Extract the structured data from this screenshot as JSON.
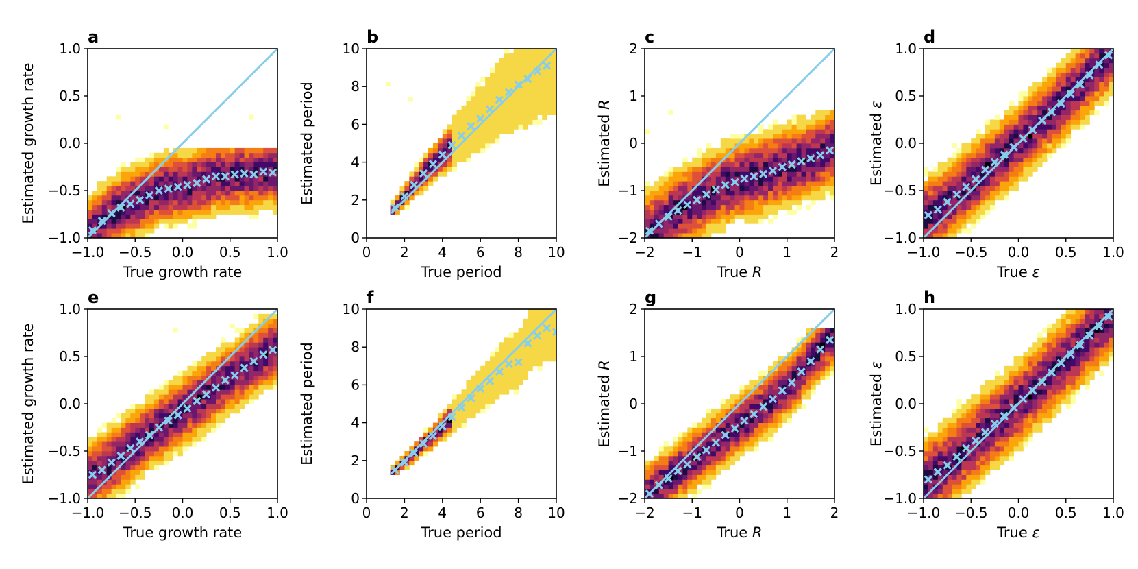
{
  "figure": {
    "description_colormap": "inferno_r",
    "colors": {
      "reference_line": "#87ceeb",
      "markers": "#87ceeb",
      "axes": "#000000"
    }
  },
  "chart_data": [
    {
      "type": "heatmap",
      "panel": "a",
      "xlabel": "True growth rate",
      "ylabel": "Estimated growth rate",
      "xlim": [
        -1,
        1
      ],
      "ylim": [
        -1,
        1
      ],
      "xticks": [
        -1.0,
        -0.5,
        0.0,
        0.5,
        1.0
      ],
      "xtick_labels": [
        "−1.0",
        "−0.5",
        "0.0",
        "0.5",
        "1.0"
      ],
      "yticks": [
        -1.0,
        -0.5,
        0.0,
        0.5,
        1.0
      ],
      "ytick_labels": [
        "−1.0",
        "−0.5",
        "0.0",
        "0.5",
        "1.0"
      ],
      "reference_line": [
        [
          -1,
          -1
        ],
        [
          1,
          1
        ]
      ],
      "binned_mean": {
        "x": [
          -0.95,
          -0.85,
          -0.75,
          -0.65,
          -0.55,
          -0.45,
          -0.35,
          -0.25,
          -0.15,
          -0.05,
          0.05,
          0.15,
          0.25,
          0.35,
          0.45,
          0.55,
          0.65,
          0.75,
          0.85,
          0.95
        ],
        "y": [
          -0.92,
          -0.82,
          -0.74,
          -0.68,
          -0.64,
          -0.6,
          -0.55,
          -0.5,
          -0.48,
          -0.46,
          -0.44,
          -0.42,
          -0.38,
          -0.35,
          -0.35,
          -0.33,
          -0.32,
          -0.33,
          -0.3,
          -0.31
        ]
      },
      "density": {
        "spread": 0.2,
        "ymin": -1.0,
        "ymax": -0.05,
        "outliers": [
          [
            -0.7,
            0.25
          ],
          [
            0.7,
            0.25
          ],
          [
            -0.2,
            0.15
          ]
        ]
      }
    },
    {
      "type": "heatmap",
      "panel": "b",
      "xlabel": "True period",
      "ylabel": "Estimated period",
      "xlim": [
        0,
        10
      ],
      "ylim": [
        0,
        10
      ],
      "xticks": [
        0,
        2,
        4,
        6,
        8,
        10
      ],
      "xtick_labels": [
        "0",
        "2",
        "4",
        "6",
        "8",
        "10"
      ],
      "yticks": [
        0,
        2,
        4,
        6,
        8,
        10
      ],
      "ytick_labels": [
        "0",
        "2",
        "4",
        "6",
        "8",
        "10"
      ],
      "reference_line": [
        [
          1.3,
          1.3
        ],
        [
          10,
          10
        ]
      ],
      "binned_mean": {
        "x": [
          1.5,
          2.0,
          2.5,
          3.0,
          3.5,
          4.0,
          4.5,
          5.0,
          5.5,
          6.0,
          6.5,
          7.0,
          7.5,
          8.0,
          8.5,
          9.0,
          9.5
        ],
        "y": [
          1.6,
          2.2,
          2.8,
          3.4,
          3.9,
          4.4,
          4.9,
          5.4,
          5.9,
          6.3,
          6.8,
          7.3,
          7.7,
          8.1,
          8.4,
          8.8,
          9.1
        ]
      },
      "density": {
        "spread": 1.4,
        "ymin": 1.2,
        "ymax": 10,
        "xmin": 1.2,
        "outliers": [
          [
            2.2,
            7.2
          ],
          [
            1.0,
            8.0
          ]
        ]
      }
    },
    {
      "type": "heatmap",
      "panel": "c",
      "xlabel": "True R",
      "xlabel_main": "True",
      "xlabel_var": "R",
      "ylabel": "Estimated R",
      "ylabel_main": "Estimated",
      "ylabel_var": "R",
      "xlim": [
        -2,
        2
      ],
      "ylim": [
        -2,
        2
      ],
      "xticks": [
        -2,
        -1,
        0,
        1,
        2
      ],
      "xtick_labels": [
        "−2",
        "−1",
        "0",
        "1",
        "2"
      ],
      "yticks": [
        -2,
        -1,
        0,
        1,
        2
      ],
      "ytick_labels": [
        "−2",
        "−1",
        "0",
        "1",
        "2"
      ],
      "reference_line": [
        [
          -2,
          -2
        ],
        [
          2,
          2
        ]
      ],
      "binned_mean": {
        "x": [
          -1.9,
          -1.7,
          -1.5,
          -1.3,
          -1.1,
          -0.9,
          -0.7,
          -0.5,
          -0.3,
          -0.1,
          0.1,
          0.3,
          0.5,
          0.7,
          0.9,
          1.1,
          1.3,
          1.5,
          1.7,
          1.9
        ],
        "y": [
          -1.85,
          -1.7,
          -1.55,
          -1.42,
          -1.3,
          -1.2,
          -1.08,
          -0.98,
          -0.88,
          -0.82,
          -0.75,
          -0.7,
          -0.65,
          -0.58,
          -0.5,
          -0.45,
          -0.38,
          -0.32,
          -0.25,
          -0.15
        ]
      },
      "density": {
        "spread": 0.45,
        "ymin": -2.0,
        "ymax": 0.7,
        "outliers": [
          [
            -1.5,
            0.6
          ],
          [
            -2.0,
            0.2
          ]
        ]
      }
    },
    {
      "type": "heatmap",
      "panel": "d",
      "xlabel": "True ε",
      "xlabel_main": "True",
      "xlabel_var": "ε",
      "ylabel": "Estimated ε",
      "ylabel_main": "Estimated",
      "ylabel_var": "ε",
      "xlim": [
        -1,
        1
      ],
      "ylim": [
        -1,
        1
      ],
      "xticks": [
        -1.0,
        -0.5,
        0.0,
        0.5,
        1.0
      ],
      "xtick_labels": [
        "−1.0",
        "−0.5",
        "0.0",
        "0.5",
        "1.0"
      ],
      "yticks": [
        -1.0,
        -0.5,
        0.0,
        0.5,
        1.0
      ],
      "ytick_labels": [
        "−1.0",
        "−0.5",
        "0.0",
        "0.5",
        "1.0"
      ],
      "reference_line": [
        [
          -1,
          -1
        ],
        [
          1,
          1
        ]
      ],
      "binned_mean": {
        "x": [
          -0.95,
          -0.85,
          -0.75,
          -0.65,
          -0.55,
          -0.45,
          -0.35,
          -0.25,
          -0.15,
          -0.05,
          0.05,
          0.15,
          0.25,
          0.35,
          0.45,
          0.55,
          0.65,
          0.75,
          0.85,
          0.95
        ],
        "y": [
          -0.76,
          -0.7,
          -0.62,
          -0.54,
          -0.46,
          -0.38,
          -0.28,
          -0.2,
          -0.12,
          -0.04,
          0.05,
          0.14,
          0.24,
          0.33,
          0.42,
          0.52,
          0.62,
          0.72,
          0.83,
          0.93
        ]
      },
      "density": {
        "spread": 0.22,
        "ymin": -1.0,
        "ymax": 1.0,
        "outliers": []
      }
    },
    {
      "type": "heatmap",
      "panel": "e",
      "xlabel": "True growth rate",
      "ylabel": "Estimated growth rate",
      "xlim": [
        -1,
        1
      ],
      "ylim": [
        -1,
        1
      ],
      "xticks": [
        -1.0,
        -0.5,
        0.0,
        0.5,
        1.0
      ],
      "xtick_labels": [
        "−1.0",
        "−0.5",
        "0.0",
        "0.5",
        "1.0"
      ],
      "yticks": [
        -1.0,
        -0.5,
        0.0,
        0.5,
        1.0
      ],
      "ytick_labels": [
        "−1.0",
        "−0.5",
        "0.0",
        "0.5",
        "1.0"
      ],
      "reference_line": [
        [
          -1,
          -1
        ],
        [
          1,
          1
        ]
      ],
      "binned_mean": {
        "x": [
          -0.95,
          -0.85,
          -0.75,
          -0.65,
          -0.55,
          -0.45,
          -0.35,
          -0.25,
          -0.15,
          -0.05,
          0.05,
          0.15,
          0.25,
          0.35,
          0.45,
          0.55,
          0.65,
          0.75,
          0.85,
          0.95
        ],
        "y": [
          -0.75,
          -0.7,
          -0.62,
          -0.55,
          -0.47,
          -0.4,
          -0.33,
          -0.25,
          -0.18,
          -0.12,
          -0.05,
          0.03,
          0.1,
          0.17,
          0.25,
          0.3,
          0.38,
          0.45,
          0.52,
          0.57
        ]
      },
      "density": {
        "spread": 0.2,
        "ymin": -1.0,
        "ymax": 1.0,
        "outliers": [
          [
            -0.1,
            0.75
          ],
          [
            0.5,
            0.8
          ]
        ]
      }
    },
    {
      "type": "heatmap",
      "panel": "f",
      "xlabel": "True period",
      "ylabel": "Estimated period",
      "xlim": [
        0,
        10
      ],
      "ylim": [
        0,
        10
      ],
      "xticks": [
        0,
        2,
        4,
        6,
        8,
        10
      ],
      "xtick_labels": [
        "0",
        "2",
        "4",
        "6",
        "8",
        "10"
      ],
      "yticks": [
        0,
        2,
        4,
        6,
        8,
        10
      ],
      "ytick_labels": [
        "0",
        "2",
        "4",
        "6",
        "8",
        "10"
      ],
      "reference_line": [
        [
          1.3,
          1.3
        ],
        [
          10,
          10
        ]
      ],
      "binned_mean": {
        "x": [
          1.5,
          2.0,
          2.5,
          3.0,
          3.5,
          4.0,
          4.5,
          5.0,
          5.5,
          6.0,
          6.5,
          7.0,
          7.5,
          8.0,
          8.5,
          9.0,
          9.5,
          10.0
        ],
        "y": [
          1.5,
          1.9,
          2.4,
          2.9,
          3.3,
          3.8,
          4.3,
          4.8,
          5.3,
          5.8,
          6.2,
          6.7,
          7.1,
          7.2,
          8.2,
          8.6,
          9.0,
          8.8
        ]
      },
      "density": {
        "spread": 0.9,
        "ymin": 1.2,
        "ymax": 10,
        "xmin": 1.2,
        "outliers": []
      }
    },
    {
      "type": "heatmap",
      "panel": "g",
      "xlabel": "True R",
      "xlabel_main": "True",
      "xlabel_var": "R",
      "ylabel": "Estimated R",
      "ylabel_main": "Estimated",
      "ylabel_var": "R",
      "xlim": [
        -2,
        2
      ],
      "ylim": [
        -2,
        2
      ],
      "xticks": [
        -2,
        -1,
        0,
        1,
        2
      ],
      "xtick_labels": [
        "−2",
        "−1",
        "0",
        "1",
        "2"
      ],
      "yticks": [
        -2,
        -1,
        0,
        1,
        2
      ],
      "ytick_labels": [
        "−2",
        "−1",
        "0",
        "1",
        "2"
      ],
      "reference_line": [
        [
          -2,
          -2
        ],
        [
          2,
          2
        ]
      ],
      "binned_mean": {
        "x": [
          -1.9,
          -1.7,
          -1.5,
          -1.3,
          -1.1,
          -0.9,
          -0.7,
          -0.5,
          -0.3,
          -0.1,
          0.1,
          0.3,
          0.5,
          0.7,
          0.9,
          1.1,
          1.3,
          1.5,
          1.7,
          1.9
        ],
        "y": [
          -1.9,
          -1.72,
          -1.58,
          -1.42,
          -1.28,
          -1.12,
          -0.98,
          -0.82,
          -0.66,
          -0.52,
          -0.36,
          -0.22,
          -0.06,
          0.1,
          0.28,
          0.45,
          0.68,
          0.9,
          1.15,
          1.35
        ]
      },
      "density": {
        "spread": 0.35,
        "ymin": -2.0,
        "ymax": 1.6,
        "outliers": []
      }
    },
    {
      "type": "heatmap",
      "panel": "h",
      "xlabel": "True ε",
      "xlabel_main": "True",
      "xlabel_var": "ε",
      "ylabel": "Estimated ε",
      "ylabel_main": "Estimated",
      "ylabel_var": "ε",
      "xlim": [
        -1,
        1
      ],
      "ylim": [
        -1,
        1
      ],
      "xticks": [
        -1.0,
        -0.5,
        0.0,
        0.5,
        1.0
      ],
      "xtick_labels": [
        "−1.0",
        "−0.5",
        "0.0",
        "0.5",
        "1.0"
      ],
      "yticks": [
        -1.0,
        -0.5,
        0.0,
        0.5,
        1.0
      ],
      "ytick_labels": [
        "−1.0",
        "−0.5",
        "0.0",
        "0.5",
        "1.0"
      ],
      "reference_line": [
        [
          -1,
          -1
        ],
        [
          1,
          1
        ]
      ],
      "binned_mean": {
        "x": [
          -0.95,
          -0.85,
          -0.75,
          -0.65,
          -0.55,
          -0.45,
          -0.35,
          -0.25,
          -0.15,
          -0.05,
          0.05,
          0.15,
          0.25,
          0.35,
          0.45,
          0.55,
          0.65,
          0.75,
          0.85,
          0.95
        ],
        "y": [
          -0.8,
          -0.72,
          -0.65,
          -0.56,
          -0.47,
          -0.39,
          -0.3,
          -0.21,
          -0.13,
          -0.04,
          0.05,
          0.14,
          0.23,
          0.33,
          0.43,
          0.52,
          0.62,
          0.72,
          0.82,
          0.92
        ]
      },
      "density": {
        "spread": 0.24,
        "ymin": -1.0,
        "ymax": 1.0,
        "outliers": []
      }
    }
  ]
}
